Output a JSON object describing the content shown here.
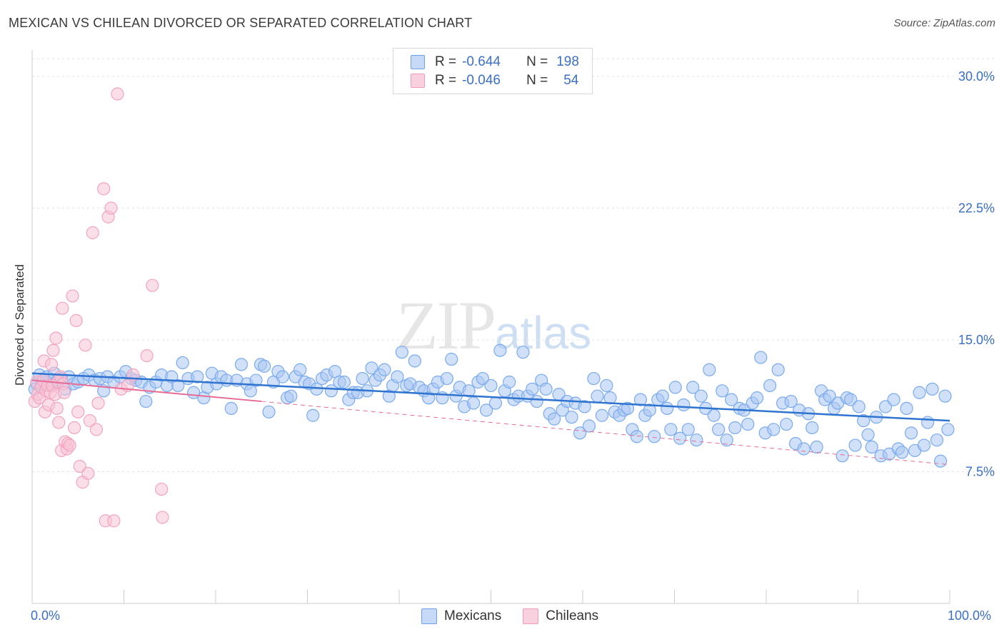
{
  "chart_data": {
    "type": "scatter",
    "title": "MEXICAN VS CHILEAN DIVORCED OR SEPARATED CORRELATION CHART",
    "source": "Source: ZipAtlas.com",
    "ylabel": "Divorced or Separated",
    "xlabel": "",
    "xlim": [
      0,
      100
    ],
    "ylim": [
      0,
      31.5
    ],
    "x_tick_labels": [
      "0.0%",
      "100.0%"
    ],
    "y_ticks": [
      7.5,
      15.0,
      22.5,
      30.0
    ],
    "y_tick_labels": [
      "7.5%",
      "15.0%",
      "22.5%",
      "30.0%"
    ],
    "grid": true,
    "legend_position": "top-center",
    "watermark": {
      "zip": "ZIP",
      "atlas": "atlas"
    },
    "legend": [
      {
        "r_label": "R =",
        "r_value": "-0.644",
        "n_label": "N =",
        "n_value": "198"
      },
      {
        "r_label": "R =",
        "r_value": "-0.046",
        "n_label": "N =",
        "n_value": "54"
      }
    ],
    "series": [
      {
        "name": "Mexicans",
        "color": "#7aaaf0",
        "fill": "#a9c7f3",
        "line_color": "#2f74d0",
        "trend": {
          "x": [
            0,
            100
          ],
          "y": [
            13.1,
            10.4
          ]
        },
        "points": [
          [
            0.5,
            12.5
          ],
          [
            0.8,
            13.0
          ],
          [
            1.2,
            12.6
          ],
          [
            1.6,
            12.9
          ],
          [
            2.0,
            12.4
          ],
          [
            2.4,
            13.1
          ],
          [
            2.8,
            12.7
          ],
          [
            3.2,
            12.8
          ],
          [
            3.6,
            12.2
          ],
          [
            4.0,
            12.9
          ],
          [
            4.5,
            12.5
          ],
          [
            5.0,
            12.6
          ],
          [
            5.6,
            12.8
          ],
          [
            6.2,
            13.0
          ],
          [
            6.8,
            12.7
          ],
          [
            7.4,
            12.8
          ],
          [
            7.8,
            12.1
          ],
          [
            8.2,
            12.9
          ],
          [
            8.9,
            12.6
          ],
          [
            9.6,
            12.9
          ],
          [
            10.2,
            13.2
          ],
          [
            10.8,
            12.8
          ],
          [
            11.3,
            12.7
          ],
          [
            11.9,
            12.6
          ],
          [
            12.4,
            11.5
          ],
          [
            12.8,
            12.3
          ],
          [
            13.5,
            12.6
          ],
          [
            14.1,
            13.0
          ],
          [
            14.7,
            12.4
          ],
          [
            15.2,
            12.9
          ],
          [
            15.9,
            12.4
          ],
          [
            16.4,
            13.7
          ],
          [
            17.0,
            12.8
          ],
          [
            17.6,
            12.0
          ],
          [
            18.0,
            12.9
          ],
          [
            18.7,
            11.7
          ],
          [
            19.1,
            12.3
          ],
          [
            19.6,
            13.1
          ],
          [
            20.1,
            12.5
          ],
          [
            20.6,
            12.9
          ],
          [
            21.2,
            12.7
          ],
          [
            21.7,
            11.1
          ],
          [
            22.3,
            12.7
          ],
          [
            22.8,
            13.6
          ],
          [
            23.4,
            12.5
          ],
          [
            23.8,
            12.1
          ],
          [
            24.4,
            12.7
          ],
          [
            24.9,
            13.6
          ],
          [
            25.3,
            13.5
          ],
          [
            25.8,
            10.9
          ],
          [
            26.3,
            12.6
          ],
          [
            26.8,
            13.2
          ],
          [
            27.3,
            12.9
          ],
          [
            27.8,
            11.7
          ],
          [
            28.2,
            11.8
          ],
          [
            28.7,
            12.9
          ],
          [
            29.2,
            13.3
          ],
          [
            29.7,
            12.6
          ],
          [
            30.2,
            12.5
          ],
          [
            30.6,
            10.7
          ],
          [
            31.0,
            12.2
          ],
          [
            31.6,
            12.8
          ],
          [
            32.1,
            13.0
          ],
          [
            32.6,
            12.1
          ],
          [
            33.0,
            13.2
          ],
          [
            33.5,
            12.6
          ],
          [
            34.0,
            12.6
          ],
          [
            34.5,
            11.6
          ],
          [
            35.0,
            12.0
          ],
          [
            35.5,
            12.0
          ],
          [
            36.0,
            12.8
          ],
          [
            36.5,
            12.1
          ],
          [
            37.0,
            13.4
          ],
          [
            37.4,
            12.7
          ],
          [
            37.9,
            13.0
          ],
          [
            38.4,
            13.3
          ],
          [
            38.9,
            11.8
          ],
          [
            39.3,
            12.4
          ],
          [
            39.8,
            12.9
          ],
          [
            40.3,
            14.3
          ],
          [
            40.8,
            12.4
          ],
          [
            41.2,
            12.5
          ],
          [
            41.7,
            13.8
          ],
          [
            42.2,
            12.3
          ],
          [
            42.7,
            12.1
          ],
          [
            43.2,
            11.7
          ],
          [
            43.7,
            12.2
          ],
          [
            44.2,
            12.6
          ],
          [
            44.7,
            11.7
          ],
          [
            45.2,
            12.8
          ],
          [
            45.7,
            13.9
          ],
          [
            46.2,
            11.8
          ],
          [
            46.6,
            12.3
          ],
          [
            47.1,
            11.2
          ],
          [
            47.6,
            12.1
          ],
          [
            48.1,
            11.4
          ],
          [
            48.6,
            12.6
          ],
          [
            49.1,
            12.8
          ],
          [
            49.5,
            11.0
          ],
          [
            50.0,
            12.4
          ],
          [
            50.5,
            11.4
          ],
          [
            51.0,
            14.4
          ],
          [
            51.5,
            12.1
          ],
          [
            52.0,
            12.6
          ],
          [
            52.5,
            11.6
          ],
          [
            53.0,
            11.8
          ],
          [
            53.5,
            14.3
          ],
          [
            54.0,
            11.8
          ],
          [
            54.5,
            12.2
          ],
          [
            55.0,
            11.5
          ],
          [
            55.5,
            12.7
          ],
          [
            56.0,
            12.2
          ],
          [
            56.4,
            10.8
          ],
          [
            56.9,
            10.5
          ],
          [
            57.4,
            11.9
          ],
          [
            57.8,
            11.0
          ],
          [
            58.3,
            11.5
          ],
          [
            58.8,
            10.6
          ],
          [
            59.2,
            11.4
          ],
          [
            59.7,
            9.7
          ],
          [
            60.2,
            11.2
          ],
          [
            60.7,
            10.1
          ],
          [
            61.2,
            12.8
          ],
          [
            61.6,
            11.8
          ],
          [
            62.1,
            10.7
          ],
          [
            62.6,
            12.4
          ],
          [
            63.0,
            11.7
          ],
          [
            63.5,
            10.9
          ],
          [
            64.0,
            10.7
          ],
          [
            64.5,
            11.0
          ],
          [
            64.9,
            11.1
          ],
          [
            65.4,
            9.9
          ],
          [
            65.9,
            9.5
          ],
          [
            66.3,
            11.6
          ],
          [
            66.8,
            10.7
          ],
          [
            67.3,
            11.0
          ],
          [
            67.8,
            9.5
          ],
          [
            68.2,
            11.6
          ],
          [
            68.7,
            11.8
          ],
          [
            69.2,
            11.1
          ],
          [
            69.6,
            9.9
          ],
          [
            70.1,
            12.3
          ],
          [
            70.6,
            9.4
          ],
          [
            71.0,
            11.3
          ],
          [
            71.5,
            9.9
          ],
          [
            72.0,
            12.3
          ],
          [
            72.4,
            9.3
          ],
          [
            72.9,
            11.8
          ],
          [
            73.4,
            11.1
          ],
          [
            73.8,
            13.3
          ],
          [
            74.3,
            10.7
          ],
          [
            74.8,
            9.9
          ],
          [
            75.2,
            12.1
          ],
          [
            75.7,
            9.3
          ],
          [
            76.2,
            11.6
          ],
          [
            76.6,
            10.0
          ],
          [
            77.1,
            11.1
          ],
          [
            77.6,
            11.0
          ],
          [
            78.0,
            10.2
          ],
          [
            78.5,
            11.4
          ],
          [
            79.0,
            11.7
          ],
          [
            79.4,
            14.0
          ],
          [
            79.9,
            9.7
          ],
          [
            80.4,
            12.4
          ],
          [
            80.8,
            9.9
          ],
          [
            81.3,
            13.3
          ],
          [
            81.8,
            11.4
          ],
          [
            82.2,
            10.2
          ],
          [
            82.7,
            11.5
          ],
          [
            83.2,
            9.1
          ],
          [
            83.6,
            11.0
          ],
          [
            84.1,
            8.8
          ],
          [
            84.6,
            10.8
          ],
          [
            85.0,
            10.0
          ],
          [
            85.5,
            8.9
          ],
          [
            86.0,
            12.1
          ],
          [
            86.4,
            11.6
          ],
          [
            86.9,
            11.8
          ],
          [
            87.4,
            11.1
          ],
          [
            87.8,
            11.4
          ],
          [
            88.3,
            8.4
          ],
          [
            88.8,
            11.7
          ],
          [
            89.2,
            11.6
          ],
          [
            89.7,
            9.0
          ],
          [
            90.1,
            11.2
          ],
          [
            90.6,
            10.4
          ],
          [
            91.1,
            9.6
          ],
          [
            91.5,
            8.9
          ],
          [
            92.0,
            10.6
          ],
          [
            92.5,
            8.4
          ],
          [
            93.0,
            11.2
          ],
          [
            93.4,
            8.5
          ],
          [
            93.9,
            11.6
          ],
          [
            94.4,
            8.8
          ],
          [
            94.8,
            8.6
          ],
          [
            95.3,
            11.1
          ],
          [
            95.8,
            9.7
          ],
          [
            96.2,
            8.7
          ],
          [
            96.7,
            12.0
          ],
          [
            97.2,
            9.0
          ],
          [
            97.6,
            10.3
          ],
          [
            98.1,
            12.2
          ],
          [
            98.6,
            9.3
          ],
          [
            99.0,
            8.1
          ],
          [
            99.5,
            11.8
          ],
          [
            99.8,
            9.9
          ],
          [
            0.3,
            12.2
          ],
          [
            1.0,
            12.4
          ]
        ]
      },
      {
        "name": "Chileans",
        "color": "#f3a3bf",
        "fill": "#f7c4d6",
        "line_color": "#e76b97",
        "trend": {
          "x": [
            0,
            25
          ],
          "y": [
            12.7,
            11.5
          ]
        },
        "trend_dashed": {
          "x": [
            25,
            100
          ],
          "y": [
            11.5,
            7.9
          ]
        },
        "points": [
          [
            0.3,
            11.5
          ],
          [
            0.5,
            12.6
          ],
          [
            0.6,
            11.9
          ],
          [
            0.8,
            11.7
          ],
          [
            1.0,
            12.3
          ],
          [
            1.2,
            12.7
          ],
          [
            1.3,
            13.8
          ],
          [
            1.4,
            10.9
          ],
          [
            1.5,
            12.1
          ],
          [
            1.7,
            12.4
          ],
          [
            1.8,
            11.3
          ],
          [
            2.0,
            12.0
          ],
          [
            2.1,
            13.6
          ],
          [
            2.2,
            12.4
          ],
          [
            2.3,
            14.4
          ],
          [
            2.5,
            11.9
          ],
          [
            2.6,
            15.1
          ],
          [
            2.7,
            11.1
          ],
          [
            2.8,
            12.6
          ],
          [
            2.9,
            10.3
          ],
          [
            3.1,
            12.9
          ],
          [
            3.2,
            8.7
          ],
          [
            3.3,
            16.8
          ],
          [
            3.4,
            12.5
          ],
          [
            3.5,
            12.0
          ],
          [
            3.6,
            9.2
          ],
          [
            3.8,
            8.8
          ],
          [
            3.9,
            9.1
          ],
          [
            4.1,
            9.0
          ],
          [
            4.4,
            17.5
          ],
          [
            4.6,
            10.0
          ],
          [
            4.8,
            16.1
          ],
          [
            5.0,
            10.9
          ],
          [
            5.2,
            7.8
          ],
          [
            5.5,
            6.9
          ],
          [
            5.8,
            14.7
          ],
          [
            6.1,
            7.4
          ],
          [
            6.3,
            10.4
          ],
          [
            6.6,
            21.1
          ],
          [
            7.0,
            9.9
          ],
          [
            7.2,
            11.4
          ],
          [
            7.8,
            23.6
          ],
          [
            8.0,
            4.7
          ],
          [
            8.3,
            22.0
          ],
          [
            8.6,
            22.5
          ],
          [
            8.9,
            4.7
          ],
          [
            9.3,
            29.0
          ],
          [
            9.7,
            12.2
          ],
          [
            10.4,
            12.4
          ],
          [
            11.0,
            13.0
          ],
          [
            12.5,
            14.1
          ],
          [
            13.1,
            18.1
          ],
          [
            14.1,
            6.5
          ],
          [
            14.2,
            4.9
          ]
        ]
      }
    ]
  }
}
